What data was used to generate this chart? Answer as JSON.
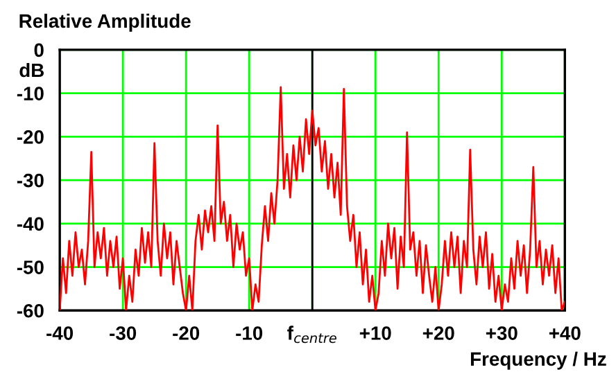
{
  "chart_data": {
    "type": "line",
    "title": "Relative Amplitude",
    "ylabel": "dB",
    "xlabel": "Frequency / Hz",
    "xlim": [
      -40,
      40
    ],
    "ylim": [
      -60,
      0
    ],
    "xticks": [
      -40,
      -30,
      -20,
      -10,
      {
        "value": 0,
        "label": "f$_{centre}$"
      },
      {
        "value": 10,
        "label": "+10"
      },
      {
        "value": 20,
        "label": "+20"
      },
      {
        "value": 30,
        "label": "+30"
      },
      {
        "value": 40,
        "label": "+40"
      }
    ],
    "yticks": [
      -60,
      -50,
      -40,
      -30,
      -20,
      -10,
      0
    ],
    "grid": true,
    "line_style": "solid",
    "ref_lines": [
      {
        "axis": "x",
        "value": 0,
        "label": null,
        "color": "#000000",
        "line_style": "solid"
      }
    ],
    "series": [
      {
        "color": "#ff0000",
        "x": [
          -40,
          -39.5,
          -39,
          -38.5,
          -38,
          -37.5,
          -37,
          -36.5,
          -36,
          -35.5,
          -35,
          -34.5,
          -34,
          -33.5,
          -33,
          -32.5,
          -32,
          -31.5,
          -31,
          -30.5,
          -30,
          -29.5,
          -29,
          -28.5,
          -28,
          -27.5,
          -27,
          -26.5,
          -26,
          -25.5,
          -25,
          -24.5,
          -24,
          -23.5,
          -23,
          -22.5,
          -22,
          -21.5,
          -21,
          -20.5,
          -20,
          -19.5,
          -19,
          -18.5,
          -18,
          -17.5,
          -17,
          -16.5,
          -16,
          -15.5,
          -15,
          -14.5,
          -14,
          -13.5,
          -13,
          -12.5,
          -12,
          -11.5,
          -11,
          -10.5,
          -10,
          -9.5,
          -9,
          -8.5,
          -8,
          -7.5,
          -7,
          -6.5,
          -6,
          -5.5,
          -5,
          -4.5,
          -4,
          -3.5,
          -3,
          -2.5,
          -2,
          -1.5,
          -1,
          -0.5,
          0,
          0.5,
          1,
          1.5,
          2,
          2.5,
          3,
          3.5,
          4,
          4.5,
          5,
          5.5,
          6,
          6.5,
          7,
          7.5,
          8,
          8.5,
          9,
          9.5,
          10,
          10.5,
          11,
          11.5,
          12,
          12.5,
          13,
          13.5,
          14,
          14.5,
          15,
          15.5,
          16,
          16.5,
          17,
          17.5,
          18,
          18.5,
          19,
          19.5,
          20,
          20.5,
          21,
          21.5,
          22,
          22.5,
          23,
          23.5,
          24,
          24.5,
          25,
          25.5,
          26,
          26.5,
          27,
          27.5,
          28,
          28.5,
          29,
          29.5,
          30,
          30.5,
          31,
          31.5,
          32,
          32.5,
          33,
          33.5,
          34,
          34.5,
          35,
          35.5,
          36,
          36.5,
          37,
          37.5,
          38,
          38.5,
          39,
          39.5,
          40
        ],
        "values": [
          -60,
          -48,
          -56,
          -44,
          -52,
          -42,
          -50,
          -46,
          -54,
          -44,
          -23.5,
          -50,
          -42,
          -48,
          -41,
          -52,
          -44,
          -50,
          -43,
          -55,
          -48,
          -60,
          -52,
          -58,
          -46,
          -52,
          -41,
          -49,
          -42,
          -50,
          -21.5,
          -44,
          -52,
          -40,
          -48,
          -42,
          -54,
          -44,
          -50,
          -56,
          -60,
          -52,
          -60,
          -44,
          -38,
          -46,
          -37,
          -42,
          -36,
          -44,
          -17.4,
          -40,
          -35,
          -44,
          -38,
          -50,
          -40,
          -46,
          -42,
          -52,
          -48,
          -60,
          -54,
          -58,
          -45,
          -36,
          -44,
          -33,
          -40,
          -30,
          -8.6,
          -32,
          -24,
          -34,
          -22,
          -30,
          -20,
          -28,
          -16,
          -24,
          -14,
          -22,
          -18,
          -28,
          -21,
          -32,
          -24,
          -34,
          -26,
          -38,
          -9,
          -36,
          -44,
          -38,
          -50,
          -42,
          -54,
          -46,
          -58,
          -52,
          -60,
          -56,
          -44,
          -52,
          -40,
          -48,
          -41,
          -55,
          -43,
          -50,
          -19,
          -46,
          -42,
          -52,
          -44,
          -56,
          -45,
          -52,
          -58,
          -50,
          -60,
          -54,
          -44,
          -52,
          -42,
          -50,
          -43,
          -56,
          -44,
          -50,
          -23,
          -46,
          -54,
          -43,
          -50,
          -42,
          -55,
          -47,
          -58,
          -52,
          -60,
          -54,
          -58,
          -48,
          -55,
          -44,
          -52,
          -45,
          -56,
          -46,
          -27,
          -50,
          -44,
          -54,
          -46,
          -52,
          -45,
          -56,
          -48,
          -60,
          -58
        ]
      }
    ]
  }
}
